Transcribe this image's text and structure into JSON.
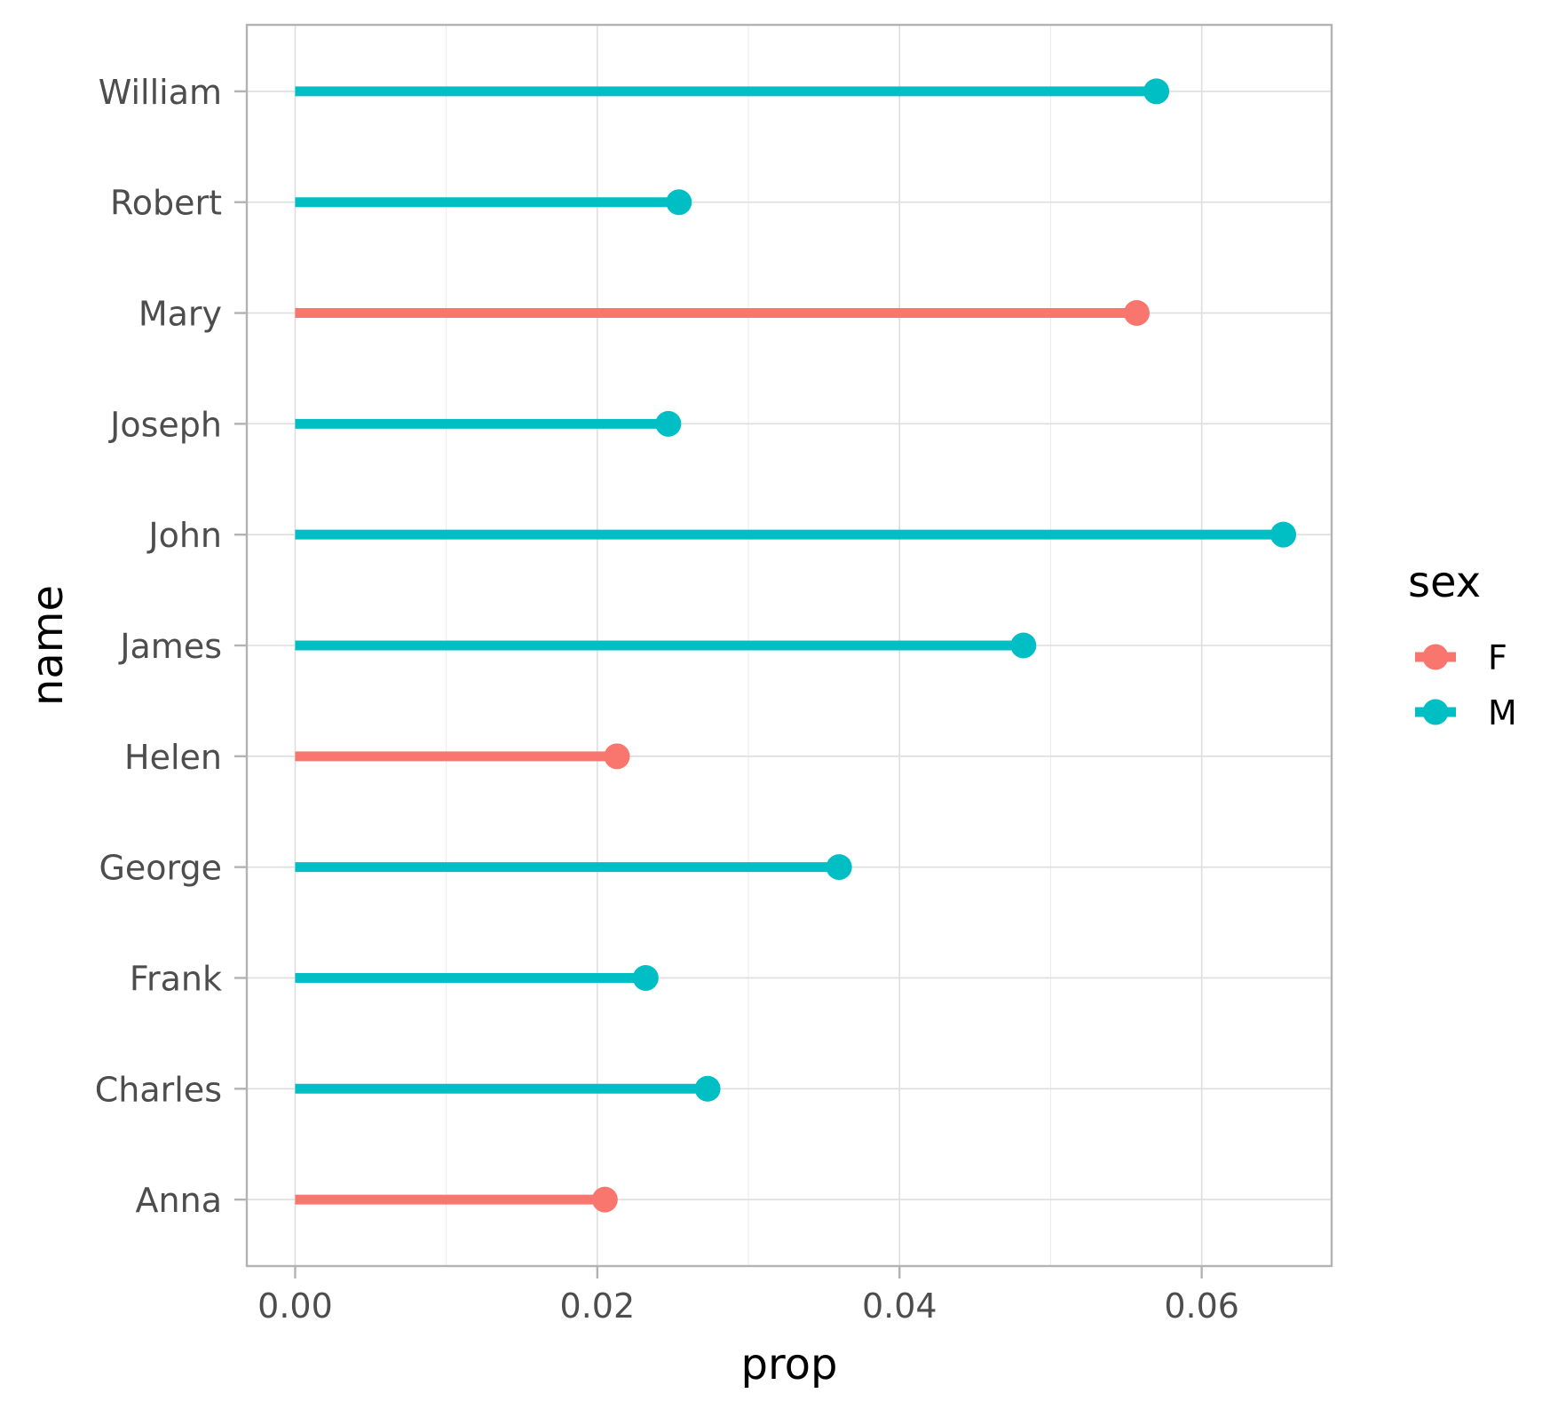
{
  "chart_data": {
    "type": "lollipop",
    "xlabel": "prop",
    "ylabel": "name",
    "xlim": [
      -0.0032,
      0.0686
    ],
    "x_ticks": [
      0.0,
      0.02,
      0.04,
      0.06
    ],
    "x_tick_labels": [
      "0.00",
      "0.02",
      "0.04",
      "0.06"
    ],
    "x_minor_ticks": [
      0.01,
      0.03,
      0.05
    ],
    "grid": true,
    "legend": {
      "title": "sex",
      "position": "right",
      "entries": [
        {
          "label": "F",
          "color": "#F8766D"
        },
        {
          "label": "M",
          "color": "#00BFC4"
        }
      ]
    },
    "categories": [
      "William",
      "Robert",
      "Mary",
      "Joseph",
      "John",
      "James",
      "Helen",
      "George",
      "Frank",
      "Charles",
      "Anna"
    ],
    "points": [
      {
        "name": "William",
        "prop": 0.057,
        "sex": "M"
      },
      {
        "name": "Robert",
        "prop": 0.0254,
        "sex": "M"
      },
      {
        "name": "Mary",
        "prop": 0.0557,
        "sex": "F"
      },
      {
        "name": "Joseph",
        "prop": 0.0247,
        "sex": "M"
      },
      {
        "name": "John",
        "prop": 0.0654,
        "sex": "M"
      },
      {
        "name": "James",
        "prop": 0.0482,
        "sex": "M"
      },
      {
        "name": "Helen",
        "prop": 0.0213,
        "sex": "F"
      },
      {
        "name": "George",
        "prop": 0.036,
        "sex": "M"
      },
      {
        "name": "Frank",
        "prop": 0.0232,
        "sex": "M"
      },
      {
        "name": "Charles",
        "prop": 0.0273,
        "sex": "M"
      },
      {
        "name": "Anna",
        "prop": 0.0205,
        "sex": "F"
      }
    ]
  }
}
